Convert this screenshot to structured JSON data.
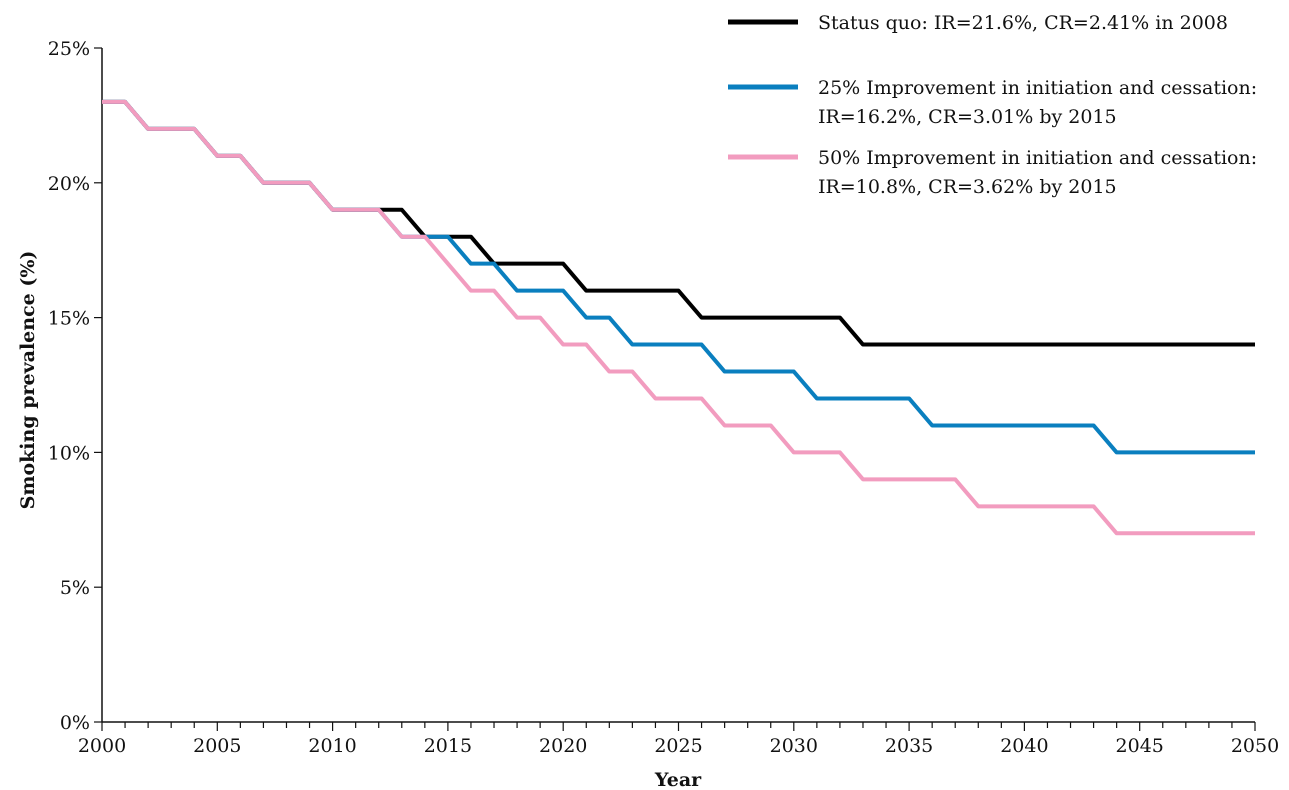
{
  "chart_data": {
    "type": "line",
    "title": "",
    "xlabel": "Year",
    "ylabel": "Smoking prevalence (%)",
    "xlim": [
      2000,
      2050
    ],
    "ylim": [
      0,
      25
    ],
    "x_ticks": [
      "2000",
      "2005",
      "2010",
      "2015",
      "2020",
      "2025",
      "2030",
      "2035",
      "2040",
      "2045",
      "2050"
    ],
    "y_ticks": [
      "0%",
      "5%",
      "10%",
      "15%",
      "20%",
      "25%"
    ],
    "grid": false,
    "legend_position": "top-right",
    "x": [
      2000,
      2001,
      2002,
      2003,
      2004,
      2005,
      2006,
      2007,
      2008,
      2009,
      2010,
      2011,
      2012,
      2013,
      2014,
      2015,
      2016,
      2017,
      2018,
      2019,
      2020,
      2021,
      2022,
      2023,
      2024,
      2025,
      2026,
      2027,
      2028,
      2029,
      2030,
      2031,
      2032,
      2033,
      2034,
      2035,
      2036,
      2037,
      2038,
      2039,
      2040,
      2041,
      2042,
      2043,
      2044,
      2045,
      2046,
      2047,
      2048,
      2049,
      2050
    ],
    "series": [
      {
        "name": "Status quo: IR=21.6%, CR=2.41% in 2008",
        "legend_lines": [
          "Status quo: IR=21.6%, CR=2.41% in 2008"
        ],
        "color": "#000000",
        "values": [
          23,
          23,
          22,
          22,
          22,
          21,
          21,
          20,
          20,
          20,
          19,
          19,
          19,
          19,
          18,
          18,
          18,
          17,
          17,
          17,
          17,
          16,
          16,
          16,
          16,
          16,
          15,
          15,
          15,
          15,
          15,
          15,
          15,
          14,
          14,
          14,
          14,
          14,
          14,
          14,
          14,
          14,
          14,
          14,
          14,
          14,
          14,
          14,
          14,
          14,
          14
        ]
      },
      {
        "name": "25% Improvement in initiation and cessation: IR=16.2%, CR=3.01% by 2015",
        "legend_lines": [
          "25% Improvement in initiation and cessation:",
          "IR=16.2%, CR=3.01% by 2015"
        ],
        "color": "#0a7fbf",
        "values": [
          23,
          23,
          22,
          22,
          22,
          21,
          21,
          20,
          20,
          20,
          19,
          19,
          19,
          18,
          18,
          18,
          17,
          17,
          16,
          16,
          16,
          15,
          15,
          14,
          14,
          14,
          14,
          13,
          13,
          13,
          13,
          12,
          12,
          12,
          12,
          12,
          11,
          11,
          11,
          11,
          11,
          11,
          11,
          11,
          10,
          10,
          10,
          10,
          10,
          10,
          10
        ]
      },
      {
        "name": "50% Improvement in initiation and cessation: IR=10.8%, CR=3.62% by 2015",
        "legend_lines": [
          "50% Improvement in initiation and cessation:",
          "IR=10.8%, CR=3.62% by 2015"
        ],
        "color": "#f29cbf",
        "values": [
          23,
          23,
          22,
          22,
          22,
          21,
          21,
          20,
          20,
          20,
          19,
          19,
          19,
          18,
          18,
          17,
          16,
          16,
          15,
          15,
          14,
          14,
          13,
          13,
          12,
          12,
          12,
          11,
          11,
          11,
          10,
          10,
          10,
          9,
          9,
          9,
          9,
          9,
          8,
          8,
          8,
          8,
          8,
          8,
          7,
          7,
          7,
          7,
          7,
          7,
          7
        ]
      }
    ]
  }
}
